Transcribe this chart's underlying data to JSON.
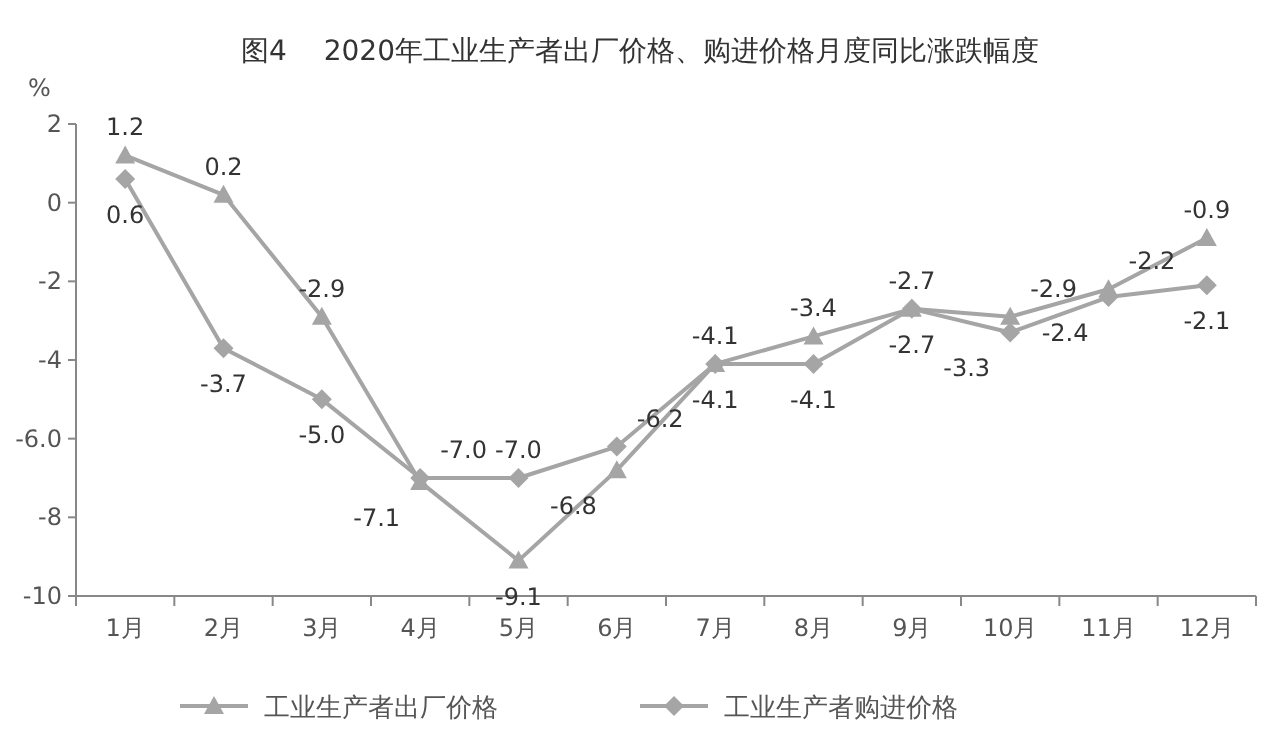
{
  "chart_data": {
    "type": "line",
    "title": "图4　 2020年工业生产者出厂价格、购进价格月度同比涨跌幅度",
    "ylabel": "%",
    "categories": [
      "1月",
      "2月",
      "3月",
      "4月",
      "5月",
      "6月",
      "7月",
      "8月",
      "9月",
      "10月",
      "11月",
      "12月"
    ],
    "series": [
      {
        "name": "工业生产者出厂价格",
        "color": "#a5a5a5",
        "marker": "triangle",
        "values": [
          1.2,
          0.2,
          -2.9,
          -7.1,
          -9.1,
          -6.8,
          -4.1,
          -3.4,
          -2.7,
          -2.9,
          -2.2,
          -0.9
        ],
        "value_labels": [
          "1.2",
          "0.2",
          "-2.9",
          "-7.1",
          "-9.1",
          "-6.8",
          "-4.1",
          "-3.4",
          "-2.7",
          "-2.9",
          "-2.2",
          "-0.9"
        ]
      },
      {
        "name": "工业生产者购进价格",
        "color": "#a5a5a5",
        "marker": "diamond",
        "values": [
          0.6,
          -3.7,
          -5.0,
          -7.0,
          -7.0,
          -6.2,
          -4.1,
          -4.1,
          -2.7,
          -3.3,
          -2.4,
          -2.1
        ],
        "value_labels": [
          "0.6",
          "-3.7",
          "-5.0",
          "-7.0",
          "-7.0",
          "-6.2",
          "-4.1",
          "-4.1",
          "-2.7",
          "-3.3",
          "-2.4",
          "-2.1"
        ]
      }
    ],
    "ylim": [
      -10,
      2
    ],
    "yticks": [
      2,
      0,
      -2,
      -4,
      {
        "value": -6,
        "label": "-6.0"
      },
      -8,
      -10
    ],
    "legend": "bottom",
    "grid": false,
    "line_style": "solid"
  }
}
